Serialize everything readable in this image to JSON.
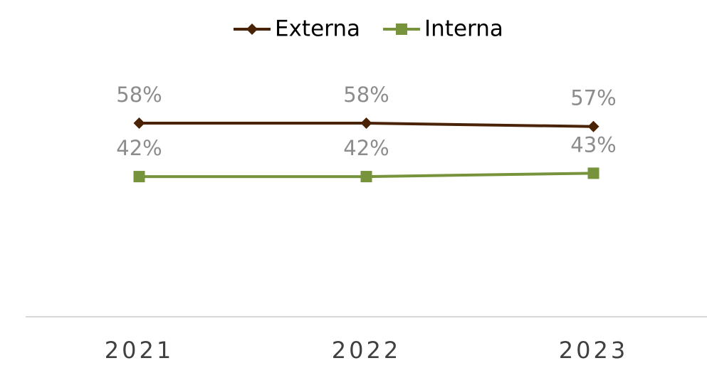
{
  "chart_data": {
    "type": "line",
    "categories": [
      "2021",
      "2022",
      "2023"
    ],
    "series": [
      {
        "name": "Externa",
        "color": "#4a2307",
        "marker": "diamond",
        "values": [
          58,
          58,
          57
        ],
        "value_labels": [
          "58%",
          "58%",
          "57%"
        ]
      },
      {
        "name": "Interna",
        "color": "#77933c",
        "marker": "square",
        "values": [
          42,
          42,
          43
        ],
        "value_labels": [
          "42%",
          "42%",
          "43%"
        ]
      }
    ],
    "ylim": [
      0,
      90
    ],
    "legend": "top"
  }
}
